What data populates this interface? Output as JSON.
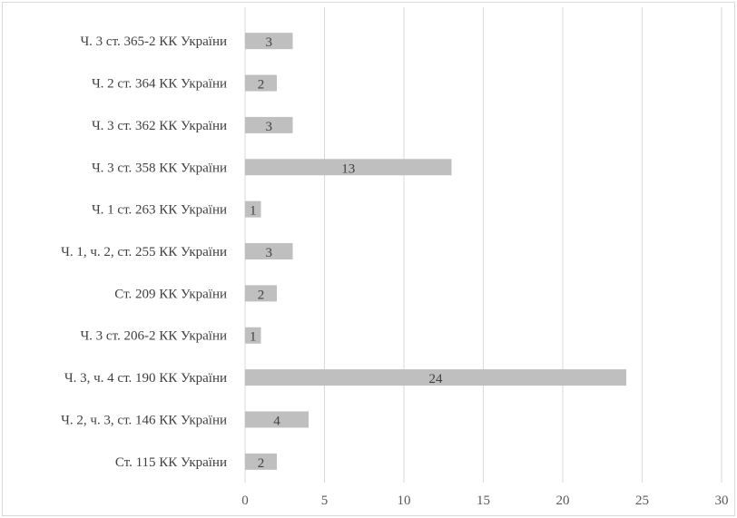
{
  "chart_data": {
    "type": "bar",
    "orientation": "horizontal",
    "categories": [
      "Ч. 3 ст. 365-2 КК України",
      "Ч. 2 ст. 364 КК України",
      "Ч. 3 ст. 362 КК України",
      "Ч. 3 ст. 358 КК України",
      "Ч. 1 ст. 263 КК України",
      "Ч. 1, ч. 2, ст. 255 КК України",
      "Ст. 209 КК України",
      "Ч. 3 ст. 206-2 КК України",
      "Ч. 3, ч. 4 ст. 190 КК України",
      "Ч. 2, ч. 3, ст. 146 КК України",
      "Ст. 115 КК України"
    ],
    "values": [
      3,
      2,
      3,
      13,
      1,
      3,
      2,
      1,
      24,
      4,
      2
    ],
    "xlim": [
      0,
      30
    ],
    "xticks": [
      0,
      5,
      10,
      15,
      20,
      25,
      30
    ],
    "gridlines": "vertical",
    "data_labels": true,
    "bar_color": "#bfbfbf",
    "grid_color": "#d9d9d9",
    "title": "",
    "xlabel": "",
    "ylabel": ""
  }
}
